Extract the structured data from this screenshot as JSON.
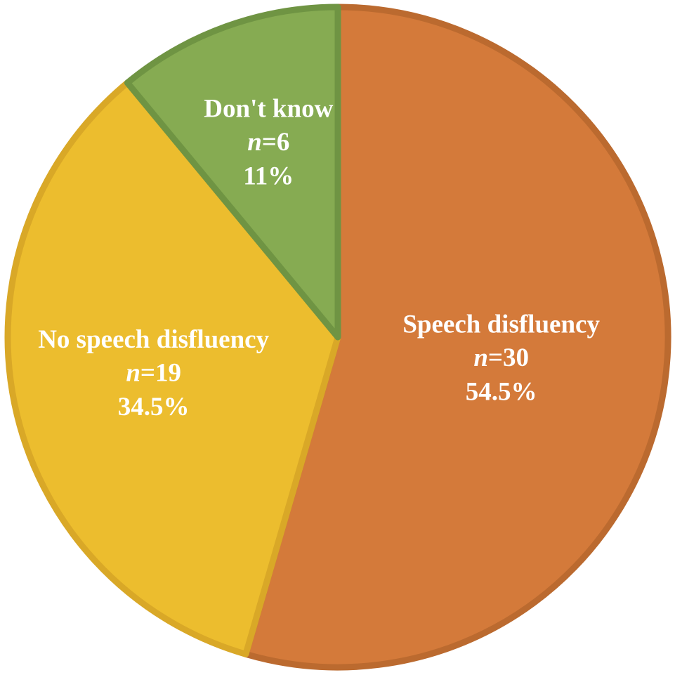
{
  "chart_data": {
    "type": "pie",
    "categories": [
      "Speech disfluency",
      "No speech disfluency",
      "Don't know"
    ],
    "values": [
      54.5,
      34.5,
      11
    ],
    "value_labels": [
      "54.5%",
      "34.5%",
      "11%"
    ],
    "counts": [
      30,
      19,
      6
    ],
    "count_labels": [
      "n=30",
      "n=19",
      "n=6"
    ],
    "colors": [
      "#d47a3a",
      "#ecbd2e",
      "#86ab52"
    ],
    "edge_colors": [
      "#bb6a2f",
      "#d9a827",
      "#6f9443"
    ]
  }
}
